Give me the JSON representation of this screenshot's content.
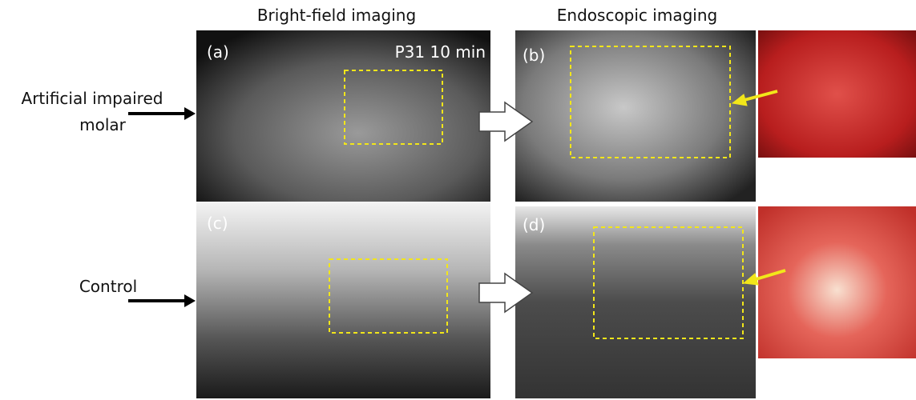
{
  "header": {
    "columns": [
      "Bright-field imaging",
      "Endoscopic imaging"
    ]
  },
  "rows": [
    {
      "label_lines": [
        "Artificial impaired",
        "molar"
      ]
    },
    {
      "label_lines": [
        "Control"
      ]
    }
  ],
  "panels": [
    {
      "label": "(a)",
      "note": "P31 10 min"
    },
    {
      "label": "(b)"
    },
    {
      "label": "(c)"
    },
    {
      "label": "(d)"
    }
  ]
}
